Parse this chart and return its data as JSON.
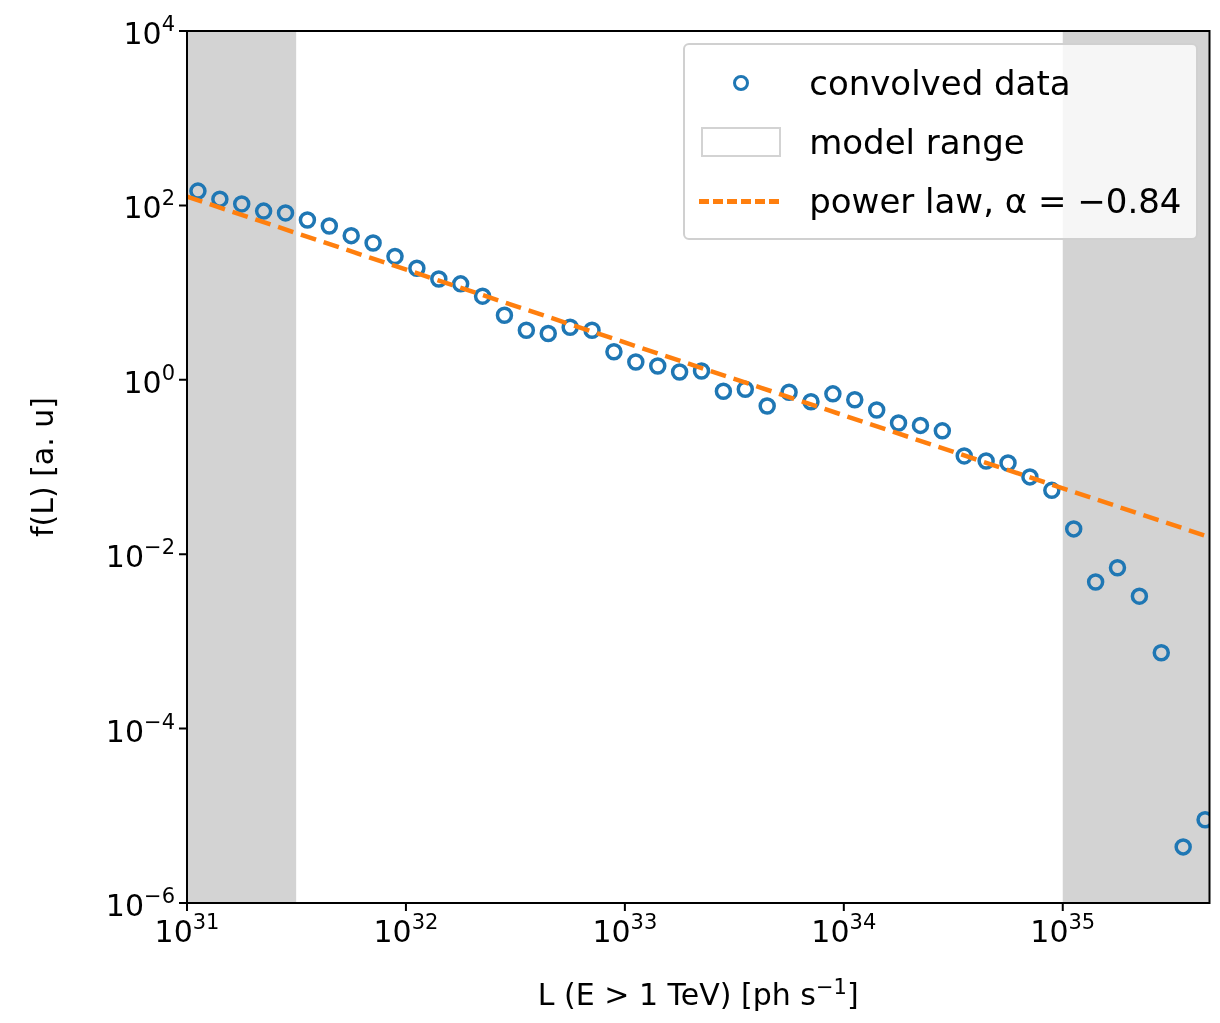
{
  "chart_data": {
    "type": "scatter",
    "xlabel": "L (E > 1 TeV) [ph s$^{−1}$]",
    "ylabel": "f(L) [a. u]",
    "log": "xy",
    "legend": "top right",
    "xlim": [
      1e+31,
      4.68e+35
    ],
    "ylim": [
      1e-06,
      10000.0
    ],
    "xticks": [
      {
        "value": 1e+31,
        "label": "10$^{31}$"
      },
      {
        "value": 1e+32,
        "label": "10$^{32}$"
      },
      {
        "value": 1e+33,
        "label": "10$^{33}$"
      },
      {
        "value": 1e+34,
        "label": "10$^{34}$"
      },
      {
        "value": 1e+35,
        "label": "10$^{35}$"
      }
    ],
    "yticks": [
      {
        "value": 1e-06,
        "label": "10$^{−6}$"
      },
      {
        "value": 0.0001,
        "label": "10$^{−4}$"
      },
      {
        "value": 0.01,
        "label": "10$^{−2}$"
      },
      {
        "value": 1,
        "label": "10$^{0}$"
      },
      {
        "value": 100,
        "label": "10$^{2}$"
      },
      {
        "value": 10000,
        "label": "10$^{4}$"
      }
    ],
    "bands": [
      {
        "axis": "x",
        "from": 1e+31,
        "to": 3.16e+31,
        "color": "#d3d3d3"
      },
      {
        "axis": "x",
        "from": 3.16e+31,
        "to": 1e+35,
        "color": "#ffffff",
        "label": "model range"
      },
      {
        "axis": "x",
        "from": 1e+35,
        "to": 4.68e+35,
        "color": "#d3d3d3"
      }
    ],
    "series": [
      {
        "type": "scatter",
        "name": "convolved data",
        "color": "#1f77b4",
        "marker": "circle",
        "x": [
          1.122e+31,
          1.413e+31,
          1.778e+31,
          2.239e+31,
          2.818e+31,
          3.548e+31,
          4.467e+31,
          5.623e+31,
          7.079e+31,
          8.913e+31,
          1.122e+32,
          1.413e+32,
          1.778e+32,
          2.239e+32,
          2.818e+32,
          3.548e+32,
          4.467e+32,
          5.623e+32,
          7.079e+32,
          8.913e+32,
          1.122e+33,
          1.413e+33,
          1.778e+33,
          2.239e+33,
          2.818e+33,
          3.548e+33,
          4.467e+33,
          5.623e+33,
          7.079e+33,
          8.913e+33,
          1.122e+34,
          1.413e+34,
          1.778e+34,
          2.239e+34,
          2.818e+34,
          3.548e+34,
          4.467e+34,
          5.623e+34,
          7.079e+34,
          8.913e+34,
          1.122e+35,
          1.413e+35,
          1.778e+35,
          2.239e+35,
          2.818e+35,
          3.548e+35,
          4.467e+35
        ],
        "values": [
          146,
          118,
          104,
          86,
          82,
          68,
          58,
          45,
          37,
          26,
          19,
          14.3,
          12.6,
          9.1,
          5.5,
          3.7,
          3.4,
          4.0,
          3.7,
          2.1,
          1.6,
          1.44,
          1.23,
          1.26,
          0.74,
          0.78,
          0.5,
          0.72,
          0.56,
          0.69,
          0.59,
          0.45,
          0.32,
          0.3,
          0.26,
          0.134,
          0.117,
          0.111,
          0.077,
          0.054,
          0.0195,
          0.0048,
          0.007,
          0.0033,
          0.00074,
          4.4e-06,
          9e-06
        ]
      },
      {
        "type": "line",
        "name": "power law, α = −0.84",
        "color": "#ff7f0e",
        "marker": "none",
        "line_style": "dashed",
        "x": [
          1e+31,
          4.68e+35
        ],
        "values": [
          126,
          0.0157
        ]
      }
    ]
  }
}
